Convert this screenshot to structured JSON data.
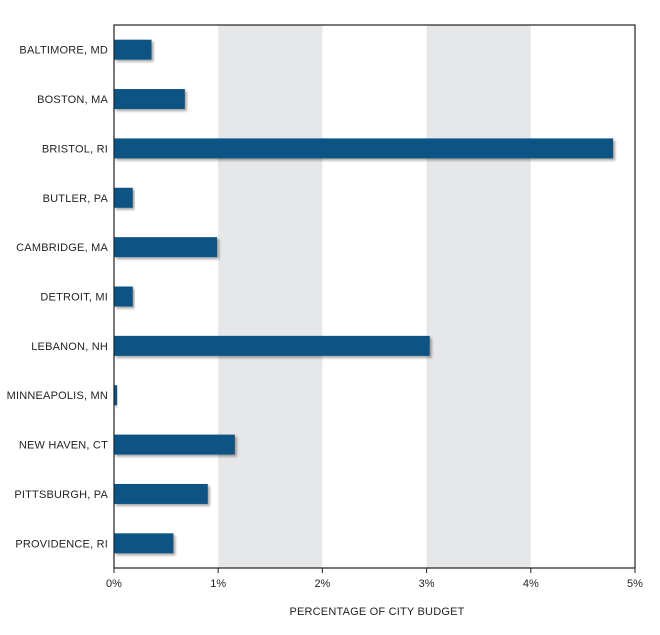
{
  "chart_data": {
    "type": "bar",
    "orientation": "horizontal",
    "categories": [
      "BALTIMORE, MD",
      "BOSTON, MA",
      "BRISTOL, RI",
      "BUTLER, PA",
      "CAMBRIDGE, MA",
      "DETROIT, MI",
      "LEBANON, NH",
      "MINNEAPOLIS, MN",
      "NEW HAVEN, CT",
      "PITTSBURGH, PA",
      "PROVIDENCE, RI"
    ],
    "values": [
      0.36,
      0.68,
      4.79,
      0.18,
      0.99,
      0.18,
      3.03,
      0.03,
      1.16,
      0.9,
      0.57
    ],
    "title": "",
    "xlabel": "PERCENTAGE OF CITY BUDGET",
    "ylabel": "",
    "xlim": [
      0,
      5
    ],
    "x_ticks": [
      "0%",
      "1%",
      "2%",
      "3%",
      "4%",
      "5%"
    ],
    "grid": "alternating vertical bands",
    "bar_color": "#0b5384",
    "band_color": "#e6e7e8"
  }
}
